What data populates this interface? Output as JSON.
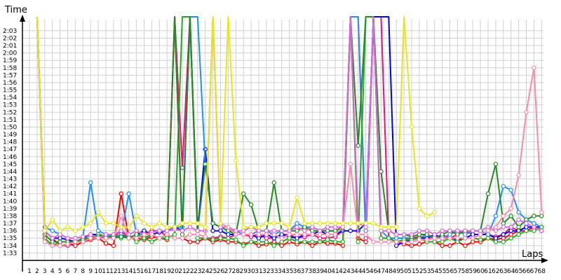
{
  "chart_data": {
    "type": "line",
    "xlabel": "Laps",
    "ylabel": "Time",
    "x": [
      1,
      2,
      3,
      4,
      5,
      6,
      7,
      8,
      9,
      10,
      11,
      12,
      13,
      14,
      15,
      16,
      17,
      18,
      19,
      20,
      21,
      22,
      23,
      24,
      25,
      26,
      27,
      28,
      29,
      30,
      31,
      32,
      33,
      34,
      35,
      36,
      37,
      38,
      39,
      40,
      41,
      42,
      43,
      44,
      45,
      46,
      47,
      48,
      49,
      50,
      51,
      52,
      53,
      54,
      55,
      56,
      57,
      58,
      59,
      60,
      61,
      62,
      63,
      64,
      65,
      66,
      67,
      68
    ],
    "y_ticks": [
      "1:33",
      "1:34",
      "1:35",
      "1:36",
      "1:37",
      "1:38",
      "1:39",
      "1:40",
      "1:41",
      "1:42",
      "1:43",
      "1:44",
      "1:45",
      "1:46",
      "1:47",
      "1:48",
      "1:49",
      "1:50",
      "1:51",
      "1:52",
      "1:53",
      "1:54",
      "1:55",
      "1:56",
      "1:57",
      "1:58",
      "1:59",
      "2:00",
      "2:01",
      "2:02",
      "2:03"
    ],
    "y_tick_seconds": [
      93,
      94,
      95,
      96,
      97,
      98,
      99,
      100,
      101,
      102,
      103,
      104,
      105,
      106,
      107,
      108,
      109,
      110,
      111,
      112,
      113,
      114,
      115,
      116,
      117,
      118,
      119,
      120,
      121,
      122,
      123
    ],
    "ylim_seconds": [
      92,
      124.5
    ],
    "grid": true,
    "legend": "none",
    "series": [
      {
        "color": "#ff0000",
        "values": [
          null,
          180,
          96,
          95,
          94,
          94.2,
          94,
          94.5,
          94.8,
          95,
          94.3,
          94,
          101,
          95,
          95,
          94.8,
          95.2,
          95,
          94.8,
          180,
          95,
          94.5,
          94.5,
          95,
          94.5,
          94.8,
          94.5,
          94.5,
          94.2,
          94.5,
          94,
          94.2,
          94.5,
          94,
          94.5,
          94.2,
          94.5,
          94,
          94.5,
          94.3,
          94.3,
          94,
          180,
          95,
          94.5,
          180,
          95,
          95,
          94.5,
          94.2,
          94,
          94.2,
          94.5,
          94.5,
          94,
          94,
          94.5,
          94,
          94.5,
          94.5,
          95,
          94.8,
          95,
          95.5,
          96,
          96,
          96.5,
          96
        ]
      },
      {
        "color": "#ee1177",
        "values": [
          null,
          180,
          95,
          94,
          94,
          94,
          94.5,
          94.8,
          95,
          95,
          95,
          95.2,
          96,
          95,
          95,
          95.5,
          96,
          96,
          95.2,
          180,
          104.5,
          180,
          95,
          95,
          95,
          95.2,
          95,
          95.5,
          95.5,
          95.2,
          95.5,
          95,
          95,
          95.5,
          95.5,
          95,
          95.2,
          95.5,
          95,
          95,
          95.2,
          96,
          180,
          180,
          95,
          180,
          180,
          95,
          95,
          95,
          95,
          95.2,
          95,
          95,
          95.5,
          95,
          95.5,
          96,
          95.5,
          95.5,
          95.5,
          95.2,
          95.5,
          96.5,
          96,
          96.5,
          96.5,
          96
        ]
      },
      {
        "color": "#0000ee",
        "values": [
          null,
          180,
          96,
          95,
          95,
          94.8,
          94.5,
          95,
          95.5,
          95.5,
          95.2,
          95,
          95.5,
          95,
          95.5,
          96,
          95.5,
          95.8,
          96,
          96.5,
          96,
          180,
          96,
          107,
          96,
          96,
          95.5,
          95.5,
          95.5,
          95.5,
          95,
          95.5,
          95,
          95.5,
          95.2,
          95,
          95.5,
          95.5,
          96,
          95.5,
          95.5,
          96,
          96,
          96,
          97,
          180,
          180,
          180,
          94,
          94.5,
          94.8,
          95,
          95,
          95.5,
          95,
          95,
          94.8,
          95,
          95.5,
          95.5,
          95.5,
          95,
          95.5,
          96,
          96,
          96.5,
          96.5,
          96.5
        ]
      },
      {
        "color": "#1e90ff",
        "values": [
          null,
          180,
          96.5,
          96,
          95.5,
          95,
          95,
          95.2,
          102.5,
          96,
          95.5,
          95.2,
          95.5,
          101,
          95.5,
          95.5,
          95.8,
          96,
          96,
          96.5,
          96.5,
          180,
          180,
          105,
          97,
          96.5,
          96,
          96,
          95.5,
          95.5,
          96,
          96,
          95.5,
          96,
          96,
          97,
          96.5,
          96.5,
          96,
          96,
          96,
          96.5,
          180,
          180,
          96,
          180,
          96,
          95,
          95,
          95,
          94.8,
          95,
          95.5,
          95,
          95,
          95.5,
          96,
          95.5,
          96,
          96,
          95.5,
          98,
          102,
          101.5,
          98.5,
          97.5,
          97,
          96.5
        ]
      },
      {
        "color": "#22aa22",
        "values": [
          null,
          180,
          95,
          94,
          94.5,
          94.5,
          94.5,
          95,
          95,
          95.5,
          95,
          95.5,
          95,
          95.5,
          94.5,
          95,
          94.5,
          95,
          95,
          95.5,
          180,
          180,
          95,
          95,
          94.8,
          95,
          95,
          94.8,
          94,
          94.5,
          94.5,
          94.5,
          94,
          94.5,
          95,
          94.5,
          94.5,
          94.5,
          94.5,
          94.8,
          94.5,
          94.5,
          180,
          94.5,
          180,
          180,
          95,
          95,
          94.5,
          94.8,
          94.8,
          95,
          94.5,
          94.5,
          94.5,
          95,
          94.5,
          95,
          95,
          94.8,
          95,
          94.5,
          94.5,
          95,
          95.5,
          96,
          96,
          96.5
        ]
      },
      {
        "color": "#228b22",
        "values": [
          null,
          180,
          95.5,
          94.5,
          94.5,
          94.5,
          94.5,
          94.8,
          95,
          95.2,
          95,
          95,
          95.2,
          95,
          95.5,
          95,
          95.5,
          95,
          95.5,
          180,
          95.5,
          180,
          96,
          105,
          97,
          96.5,
          96,
          95.5,
          101,
          99.5,
          96,
          96,
          102.5,
          96,
          96,
          96,
          96.5,
          96,
          96,
          96,
          96,
          96.5,
          180,
          107.5,
          180,
          180,
          104,
          96,
          95.5,
          95.5,
          95.2,
          95.5,
          95.5,
          95,
          95.5,
          96,
          95.5,
          96,
          96,
          96,
          101,
          105,
          97,
          98,
          96.5,
          97.5,
          98,
          98
        ]
      },
      {
        "color": "#dd66dd",
        "values": [
          null,
          180,
          96,
          95,
          95.5,
          95,
          95,
          95.2,
          95.5,
          95,
          95.5,
          95.5,
          96,
          95.5,
          96,
          95.5,
          95.8,
          96,
          96,
          96.2,
          96,
          96.5,
          96,
          96,
          180,
          96.5,
          96.5,
          96,
          96,
          96.5,
          96,
          96,
          96,
          96,
          96,
          96.5,
          96,
          96.5,
          96,
          96.5,
          96.5,
          96.5,
          180,
          97,
          96.5,
          180,
          96,
          96,
          95.5,
          95.5,
          95.5,
          96,
          96,
          95.5,
          96,
          96,
          96,
          96,
          96,
          96,
          96.5,
          96,
          96.5,
          96.5,
          97.5,
          97,
          96.5,
          96
        ]
      },
      {
        "color": "#ff88aa",
        "values": [
          null,
          180,
          94.5,
          94,
          94,
          94.2,
          94.5,
          94.5,
          95,
          95,
          95,
          95,
          98,
          95,
          95,
          95.5,
          95.5,
          95,
          95.5,
          95,
          95,
          95.5,
          95.5,
          95.2,
          180,
          97,
          96.5,
          95.5,
          95.5,
          95.5,
          95.5,
          95.5,
          95.5,
          95,
          95.5,
          95.5,
          95.5,
          95.5,
          95.5,
          95.5,
          95.5,
          96.5,
          105,
          95.5,
          95.5,
          94.5,
          94.5,
          94.5,
          94.5,
          94.5,
          94.5,
          94.8,
          94.8,
          95,
          95,
          95,
          95,
          95,
          95,
          95.5,
          96,
          96.5,
          98,
          99,
          103.5,
          112,
          118,
          98.5
        ]
      },
      {
        "color": "#e6e61a",
        "values": [
          null,
          180,
          96,
          97.5,
          96,
          96.5,
          96,
          96.5,
          97,
          98.5,
          97,
          97,
          96.5,
          96.5,
          98,
          97,
          96.5,
          97,
          96.5,
          96.5,
          97,
          97,
          97,
          96.5,
          180,
          97,
          180,
          105.5,
          96.5,
          96.5,
          96.5,
          97,
          97,
          97,
          96.5,
          100.5,
          97,
          97,
          97,
          97,
          97,
          97,
          97,
          97,
          97,
          97,
          96.5,
          96.5,
          96.5,
          180,
          110,
          99,
          98,
          98.5,
          null,
          null,
          null,
          null,
          null,
          null,
          null,
          null,
          null,
          null,
          null,
          null,
          null,
          null
        ]
      }
    ]
  }
}
